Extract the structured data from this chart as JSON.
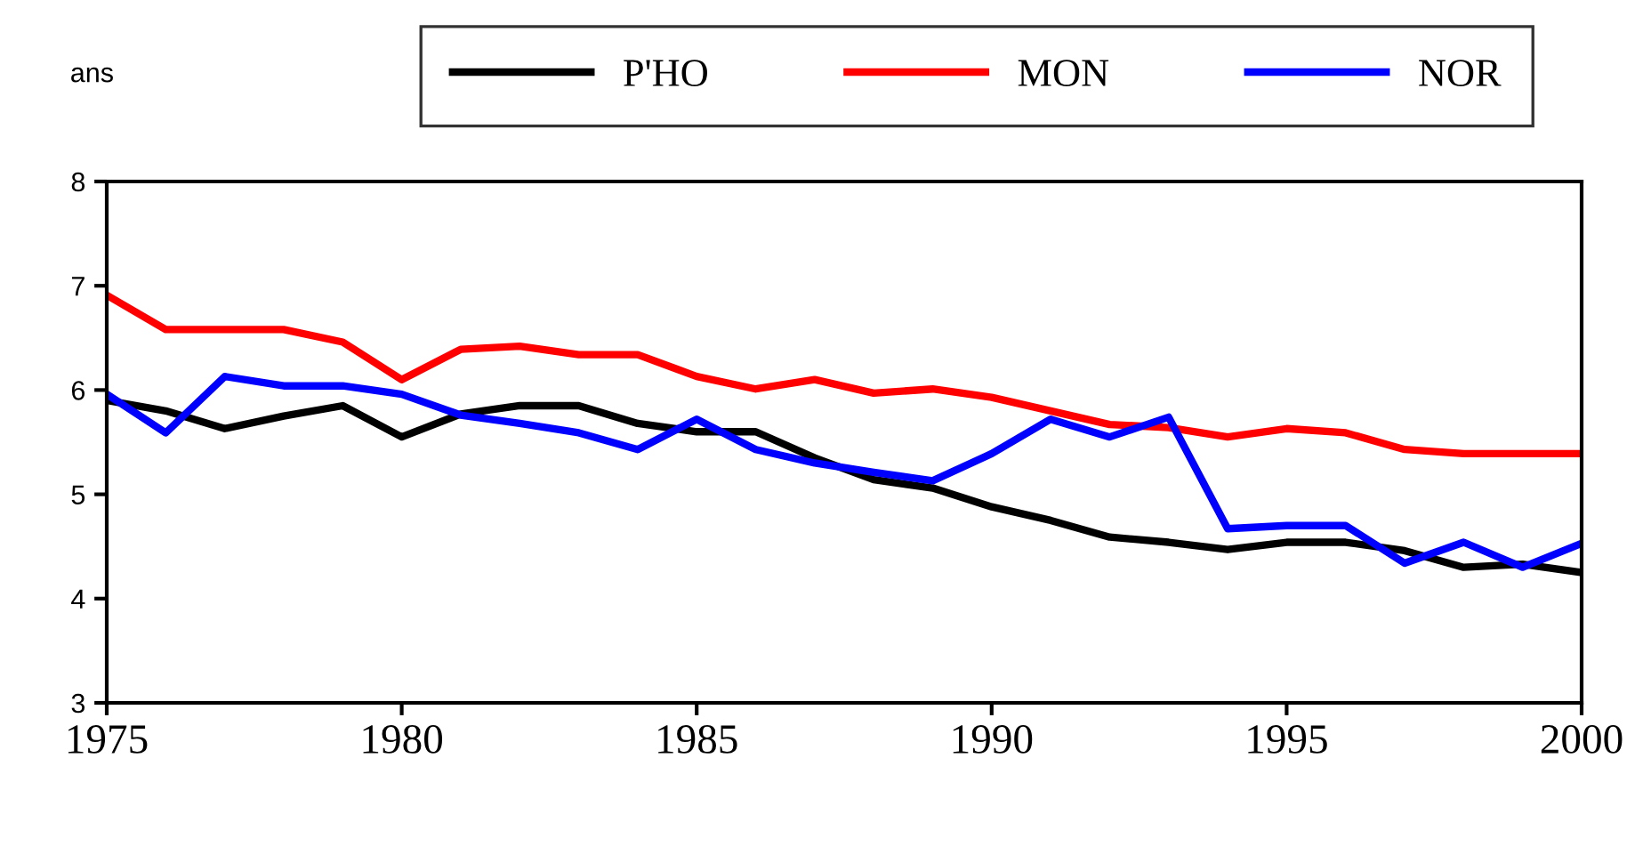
{
  "chart_data": {
    "type": "line",
    "ylabel": "ans",
    "x": [
      1975,
      1976,
      1977,
      1978,
      1979,
      1980,
      1981,
      1982,
      1983,
      1984,
      1985,
      1986,
      1987,
      1988,
      1989,
      1990,
      1991,
      1992,
      1993,
      1994,
      1995,
      1996,
      1997,
      1998,
      1999,
      2000
    ],
    "series": [
      {
        "name": "P'HO",
        "color": "#000000",
        "values": [
          5.9,
          5.8,
          5.63,
          5.75,
          5.85,
          5.55,
          5.77,
          5.85,
          5.85,
          5.68,
          5.6,
          5.6,
          5.35,
          5.14,
          5.06,
          4.88,
          4.75,
          4.59,
          4.54,
          4.47,
          4.54,
          4.54,
          4.46,
          4.3,
          4.33,
          4.25
        ]
      },
      {
        "name": "MON",
        "color": "#ff0000",
        "values": [
          6.91,
          6.58,
          6.58,
          6.58,
          6.46,
          6.1,
          6.39,
          6.42,
          6.34,
          6.34,
          6.13,
          6.01,
          6.1,
          5.97,
          6.01,
          5.93,
          5.8,
          5.67,
          5.64,
          5.55,
          5.63,
          5.59,
          5.43,
          5.39,
          5.39,
          5.39
        ]
      },
      {
        "name": "NOR",
        "color": "#0000ff",
        "values": [
          5.96,
          5.59,
          6.13,
          6.04,
          6.04,
          5.96,
          5.76,
          5.68,
          5.59,
          5.43,
          5.72,
          5.43,
          5.3,
          5.21,
          5.13,
          5.39,
          5.72,
          5.55,
          5.74,
          4.67,
          4.7,
          4.7,
          4.34,
          4.54,
          4.3,
          4.53
        ]
      }
    ],
    "xlim": [
      1975,
      2000
    ],
    "xticks": [
      1975,
      1980,
      1985,
      1990,
      1995,
      2000
    ],
    "ylim": [
      3,
      8
    ],
    "yticks": [
      3,
      4,
      5,
      6,
      7,
      8
    ],
    "grid": false,
    "legend": "top",
    "marker": "none",
    "line_style": "solid"
  }
}
